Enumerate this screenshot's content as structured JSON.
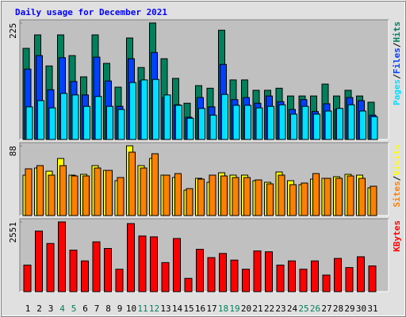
{
  "title": "Daily usage for December 2021",
  "legend_separator": "/",
  "categories": [
    "1",
    "2",
    "3",
    "4",
    "5",
    "6",
    "7",
    "8",
    "9",
    "10",
    "11",
    "12",
    "13",
    "14",
    "15",
    "16",
    "17",
    "18",
    "19",
    "20",
    "21",
    "22",
    "23",
    "24",
    "25",
    "26",
    "27",
    "28",
    "29",
    "30",
    "31"
  ],
  "category_colors": [
    "#000000",
    "#000000",
    "#000000",
    "#00805c",
    "#00805c",
    "#000000",
    "#000000",
    "#000000",
    "#000000",
    "#000000",
    "#00805c",
    "#00805c",
    "#000000",
    "#000000",
    "#000000",
    "#000000",
    "#000000",
    "#00805c",
    "#00805c",
    "#000000",
    "#000000",
    "#000000",
    "#000000",
    "#000000",
    "#00805c",
    "#00805c",
    "#000000",
    "#000000",
    "#000000",
    "#000000",
    "#000000"
  ],
  "chart_data": [
    {
      "type": "bar",
      "ylim": [
        0,
        225
      ],
      "yticks": [
        225
      ],
      "series": [
        {
          "name": "Hits",
          "color": "#00805c",
          "values": [
            176,
            202,
            142,
            202,
            162,
            121,
            202,
            147,
            101,
            196,
            139,
            225,
            156,
            118,
            70,
            104,
            99,
            211,
            115,
            115,
            95,
            95,
            99,
            84,
            84,
            84,
            107,
            84,
            95,
            84,
            72
          ]
        },
        {
          "name": "Files",
          "color": "#0040ff",
          "values": [
            136,
            162,
            96,
            158,
            112,
            86,
            159,
            113,
            64,
            156,
            113,
            168,
            81,
            67,
            43,
            81,
            63,
            145,
            77,
            81,
            70,
            84,
            73,
            58,
            77,
            54,
            69,
            58,
            81,
            75,
            47
          ]
        },
        {
          "name": "Pages",
          "color": "#00e0ff",
          "values": [
            63,
            75,
            61,
            89,
            86,
            64,
            83,
            64,
            58,
            110,
            115,
            116,
            86,
            66,
            41,
            60,
            47,
            87,
            66,
            66,
            61,
            64,
            67,
            49,
            64,
            49,
            55,
            60,
            67,
            55,
            44
          ]
        }
      ]
    },
    {
      "type": "bar",
      "ylim": [
        0,
        88
      ],
      "yticks": [
        88
      ],
      "series": [
        {
          "name": "Visits",
          "color": "#ffff00",
          "values": [
            51,
            60,
            56,
            72,
            51,
            52,
            63,
            57,
            44,
            88,
            63,
            72,
            51,
            48,
            32,
            47,
            42,
            54,
            51,
            51,
            44,
            42,
            55,
            44,
            39,
            46,
            47,
            49,
            52,
            51,
            35
          ]
        },
        {
          "name": "Sites",
          "color": "#ff8000",
          "values": [
            59,
            63,
            51,
            63,
            50,
            50,
            60,
            57,
            48,
            80,
            60,
            78,
            51,
            53,
            34,
            46,
            51,
            50,
            48,
            48,
            45,
            40,
            51,
            39,
            41,
            53,
            47,
            47,
            50,
            47,
            37
          ]
        }
      ]
    },
    {
      "type": "bar",
      "ylim": [
        0,
        2551
      ],
      "yticks": [
        2551
      ],
      "series": [
        {
          "name": "KBytes",
          "color": "#ff0000",
          "values": [
            972,
            2217,
            1762,
            2551,
            1518,
            1124,
            1822,
            1579,
            820,
            2490,
            2035,
            2004,
            1063,
            1944,
            486,
            1549,
            1245,
            1397,
            1154,
            820,
            1488,
            1458,
            972,
            1124,
            820,
            1124,
            607,
            1215,
            881,
            1276,
            941
          ]
        }
      ]
    }
  ]
}
